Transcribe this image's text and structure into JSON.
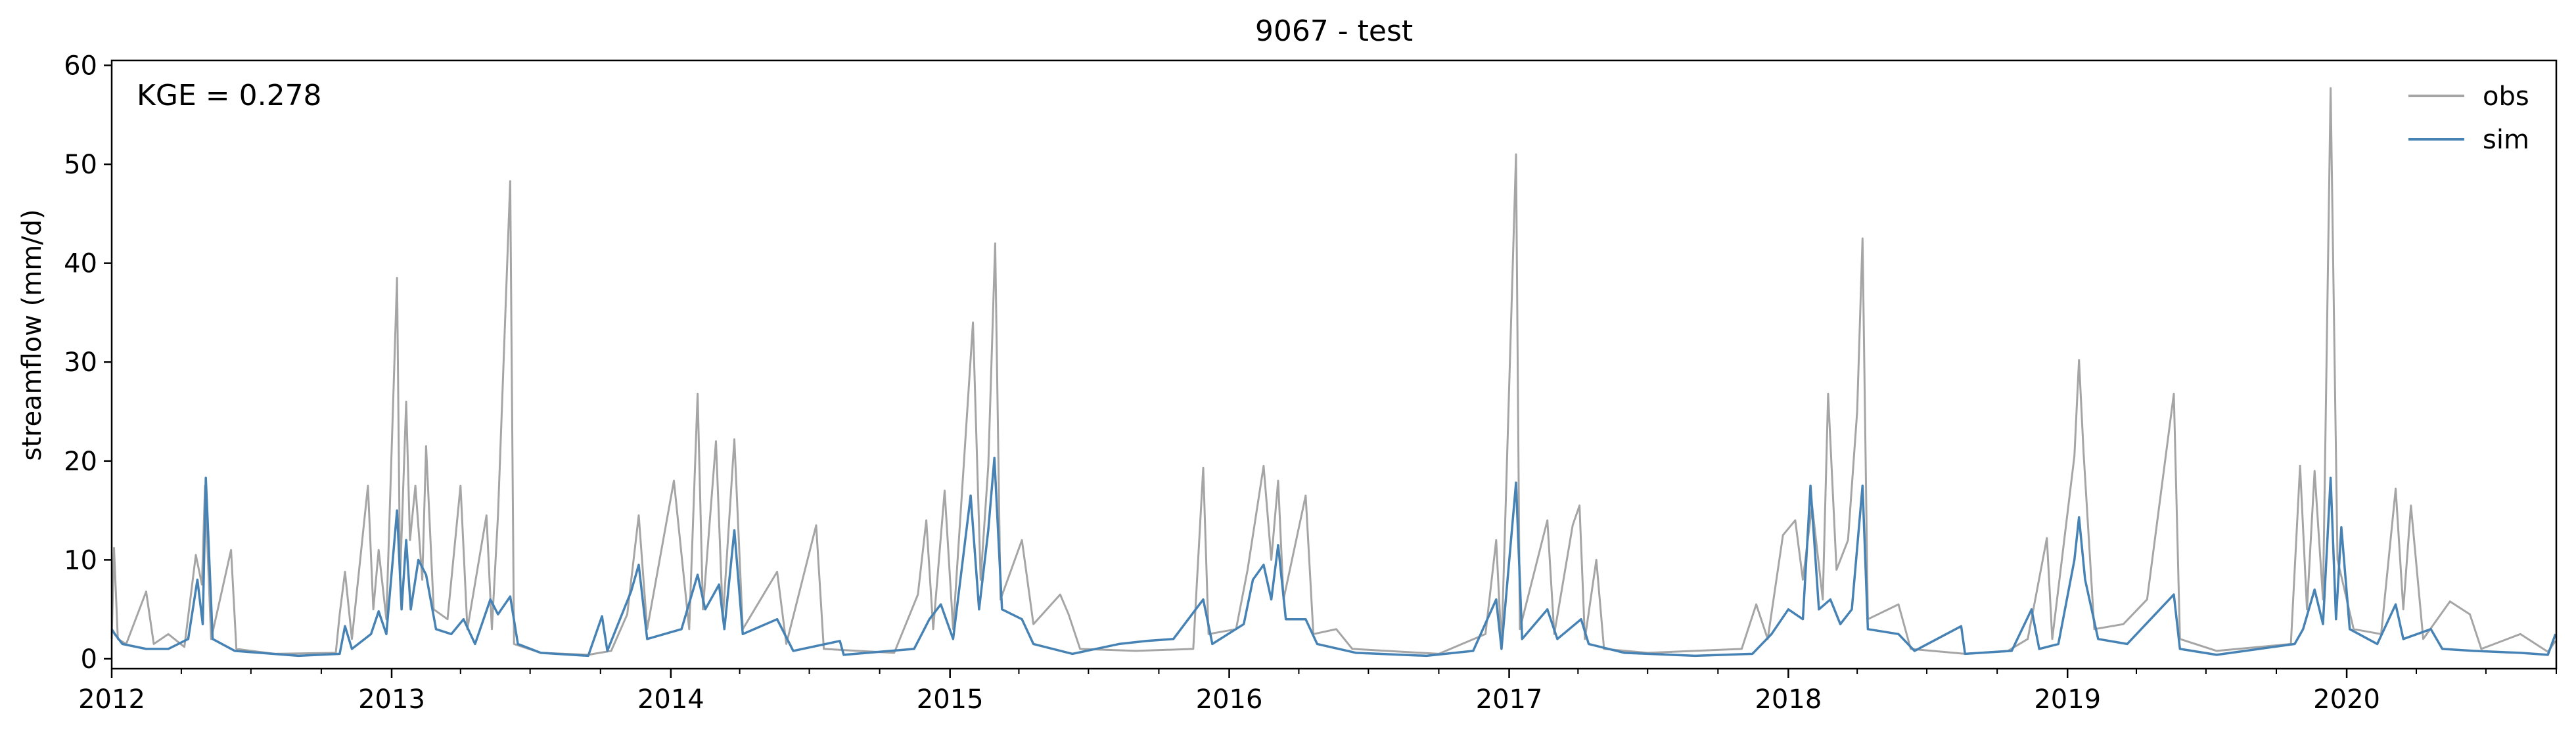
{
  "chart_data": {
    "type": "line",
    "title": "9067 - test",
    "xlabel": "",
    "ylabel": "streamflow (mm/d)",
    "annotation": "KGE = 0.278",
    "xlim": [
      "2012-01-01",
      "2020-10-01"
    ],
    "ylim": [
      -1,
      60.5
    ],
    "x_ticks": [
      "2012",
      "2013",
      "2014",
      "2015",
      "2016",
      "2017",
      "2018",
      "2019",
      "2020"
    ],
    "y_ticks": [
      0,
      10,
      20,
      30,
      40,
      50,
      60
    ],
    "grid": false,
    "legend_position": "top-right",
    "series": [
      {
        "name": "obs",
        "color": "#a5a5a5",
        "points": [
          [
            "2012-01-01",
            2.0
          ],
          [
            "2012-01-04",
            11.2
          ],
          [
            "2012-01-09",
            2.0
          ],
          [
            "2012-01-20",
            1.5
          ],
          [
            "2012-02-15",
            6.8
          ],
          [
            "2012-02-25",
            1.5
          ],
          [
            "2012-03-15",
            2.5
          ],
          [
            "2012-04-05",
            1.2
          ],
          [
            "2012-04-20",
            10.5
          ],
          [
            "2012-04-28",
            7.5
          ],
          [
            "2012-05-02",
            17.5
          ],
          [
            "2012-05-10",
            2.0
          ],
          [
            "2012-06-05",
            11.0
          ],
          [
            "2012-06-12",
            1.0
          ],
          [
            "2012-08-01",
            0.5
          ],
          [
            "2012-10-20",
            0.6
          ],
          [
            "2012-10-25",
            4.5
          ],
          [
            "2012-11-01",
            8.8
          ],
          [
            "2012-11-10",
            2.0
          ],
          [
            "2012-12-01",
            17.5
          ],
          [
            "2012-12-08",
            5.0
          ],
          [
            "2012-12-15",
            11.0
          ],
          [
            "2012-12-25",
            4.0
          ],
          [
            "2013-01-08",
            38.5
          ],
          [
            "2013-01-12",
            8.0
          ],
          [
            "2013-01-20",
            26.0
          ],
          [
            "2013-01-25",
            12.0
          ],
          [
            "2013-02-01",
            17.5
          ],
          [
            "2013-02-10",
            8.0
          ],
          [
            "2013-02-15",
            21.5
          ],
          [
            "2013-02-25",
            5.0
          ],
          [
            "2013-03-15",
            4.0
          ],
          [
            "2013-04-01",
            17.5
          ],
          [
            "2013-04-10",
            3.0
          ],
          [
            "2013-05-05",
            14.5
          ],
          [
            "2013-05-12",
            3.0
          ],
          [
            "2013-05-20",
            14.5
          ],
          [
            "2013-06-05",
            48.3
          ],
          [
            "2013-06-10",
            1.5
          ],
          [
            "2013-07-15",
            0.6
          ],
          [
            "2013-09-15",
            0.4
          ],
          [
            "2013-10-15",
            0.8
          ],
          [
            "2013-11-05",
            4.5
          ],
          [
            "2013-11-20",
            14.5
          ],
          [
            "2013-12-01",
            3.0
          ],
          [
            "2014-01-05",
            18.0
          ],
          [
            "2014-01-25",
            3.0
          ],
          [
            "2014-02-05",
            26.8
          ],
          [
            "2014-02-12",
            5.0
          ],
          [
            "2014-03-01",
            22.0
          ],
          [
            "2014-03-10",
            4.0
          ],
          [
            "2014-03-25",
            22.2
          ],
          [
            "2014-04-05",
            3.0
          ],
          [
            "2014-05-20",
            8.8
          ],
          [
            "2014-06-01",
            1.5
          ],
          [
            "2014-07-10",
            13.5
          ],
          [
            "2014-07-20",
            1.0
          ],
          [
            "2014-10-20",
            0.6
          ],
          [
            "2014-11-20",
            6.5
          ],
          [
            "2014-12-01",
            14.0
          ],
          [
            "2014-12-10",
            3.0
          ],
          [
            "2014-12-25",
            17.0
          ],
          [
            "2015-01-05",
            3.0
          ],
          [
            "2015-01-31",
            34.0
          ],
          [
            "2015-02-10",
            8.0
          ],
          [
            "2015-02-20",
            19.5
          ],
          [
            "2015-03-01",
            42.0
          ],
          [
            "2015-03-08",
            6.0
          ],
          [
            "2015-04-05",
            12.0
          ],
          [
            "2015-04-20",
            3.5
          ],
          [
            "2015-05-25",
            6.5
          ],
          [
            "2015-06-05",
            4.5
          ],
          [
            "2015-06-20",
            1.0
          ],
          [
            "2015-09-01",
            0.8
          ],
          [
            "2015-11-15",
            1.0
          ],
          [
            "2015-11-28",
            19.3
          ],
          [
            "2015-12-05",
            2.5
          ],
          [
            "2016-01-10",
            3.0
          ],
          [
            "2016-01-25",
            9.0
          ],
          [
            "2016-02-15",
            19.5
          ],
          [
            "2016-02-25",
            10.0
          ],
          [
            "2016-03-05",
            18.0
          ],
          [
            "2016-03-12",
            6.0
          ],
          [
            "2016-04-10",
            16.5
          ],
          [
            "2016-04-20",
            2.5
          ],
          [
            "2016-05-20",
            3.0
          ],
          [
            "2016-06-10",
            1.0
          ],
          [
            "2016-10-01",
            0.5
          ],
          [
            "2016-12-01",
            2.5
          ],
          [
            "2016-12-15",
            12.0
          ],
          [
            "2016-12-22",
            1.2
          ],
          [
            "2017-01-10",
            51.0
          ],
          [
            "2017-01-15",
            3.0
          ],
          [
            "2017-02-20",
            14.0
          ],
          [
            "2017-03-01",
            2.5
          ],
          [
            "2017-03-25",
            13.5
          ],
          [
            "2017-04-03",
            15.5
          ],
          [
            "2017-04-10",
            2.0
          ],
          [
            "2017-04-25",
            10.0
          ],
          [
            "2017-05-05",
            1.0
          ],
          [
            "2017-07-01",
            0.6
          ],
          [
            "2017-11-01",
            1.0
          ],
          [
            "2017-11-20",
            5.5
          ],
          [
            "2017-12-05",
            2.0
          ],
          [
            "2017-12-25",
            12.5
          ],
          [
            "2018-01-10",
            14.0
          ],
          [
            "2018-01-20",
            8.0
          ],
          [
            "2018-02-01",
            15.5
          ],
          [
            "2018-02-15",
            6.0
          ],
          [
            "2018-02-22",
            26.8
          ],
          [
            "2018-03-05",
            9.0
          ],
          [
            "2018-03-20",
            12.0
          ],
          [
            "2018-04-01",
            25.0
          ],
          [
            "2018-04-08",
            42.5
          ],
          [
            "2018-04-15",
            4.0
          ],
          [
            "2018-05-25",
            5.5
          ],
          [
            "2018-06-10",
            1.0
          ],
          [
            "2018-08-20",
            0.5
          ],
          [
            "2018-10-15",
            0.8
          ],
          [
            "2018-11-10",
            2.0
          ],
          [
            "2018-12-05",
            12.2
          ],
          [
            "2018-12-12",
            2.0
          ],
          [
            "2019-01-10",
            20.5
          ],
          [
            "2019-01-16",
            30.2
          ],
          [
            "2019-01-22",
            20.8
          ],
          [
            "2019-02-05",
            3.0
          ],
          [
            "2019-03-15",
            3.5
          ],
          [
            "2019-04-15",
            6.0
          ],
          [
            "2019-05-20",
            26.8
          ],
          [
            "2019-05-28",
            2.0
          ],
          [
            "2019-07-15",
            0.8
          ],
          [
            "2019-10-20",
            1.5
          ],
          [
            "2019-11-01",
            19.5
          ],
          [
            "2019-11-10",
            5.0
          ],
          [
            "2019-11-20",
            19.0
          ],
          [
            "2019-12-01",
            6.0
          ],
          [
            "2019-12-11",
            57.7
          ],
          [
            "2019-12-20",
            10.0
          ],
          [
            "2020-01-10",
            3.0
          ],
          [
            "2020-02-15",
            2.5
          ],
          [
            "2020-03-05",
            17.2
          ],
          [
            "2020-03-15",
            5.0
          ],
          [
            "2020-03-25",
            15.5
          ],
          [
            "2020-04-10",
            2.0
          ],
          [
            "2020-05-15",
            5.8
          ],
          [
            "2020-06-10",
            4.5
          ],
          [
            "2020-06-25",
            1.0
          ],
          [
            "2020-08-15",
            2.5
          ],
          [
            "2020-09-20",
            0.7
          ],
          [
            "2020-09-30",
            1.8
          ]
        ]
      },
      {
        "name": "sim",
        "color": "#4682b4",
        "points": [
          [
            "2012-01-01",
            3.0
          ],
          [
            "2012-01-05",
            2.5
          ],
          [
            "2012-01-15",
            1.5
          ],
          [
            "2012-02-15",
            1.0
          ],
          [
            "2012-03-15",
            1.0
          ],
          [
            "2012-04-10",
            2.0
          ],
          [
            "2012-04-22",
            8.0
          ],
          [
            "2012-04-29",
            3.5
          ],
          [
            "2012-05-03",
            18.3
          ],
          [
            "2012-05-12",
            2.0
          ],
          [
            "2012-06-10",
            0.8
          ],
          [
            "2012-09-01",
            0.3
          ],
          [
            "2012-10-25",
            0.5
          ],
          [
            "2012-11-01",
            3.3
          ],
          [
            "2012-11-10",
            1.0
          ],
          [
            "2012-12-05",
            2.5
          ],
          [
            "2012-12-15",
            4.8
          ],
          [
            "2012-12-25",
            2.5
          ],
          [
            "2013-01-08",
            15.0
          ],
          [
            "2013-01-14",
            5.0
          ],
          [
            "2013-01-20",
            12.0
          ],
          [
            "2013-01-26",
            5.0
          ],
          [
            "2013-02-05",
            10.0
          ],
          [
            "2013-02-15",
            8.5
          ],
          [
            "2013-02-28",
            3.0
          ],
          [
            "2013-03-20",
            2.5
          ],
          [
            "2013-04-05",
            4.0
          ],
          [
            "2013-04-20",
            1.5
          ],
          [
            "2013-05-10",
            6.0
          ],
          [
            "2013-05-20",
            4.5
          ],
          [
            "2013-06-05",
            6.3
          ],
          [
            "2013-06-15",
            1.5
          ],
          [
            "2013-07-15",
            0.6
          ],
          [
            "2013-09-15",
            0.3
          ],
          [
            "2013-10-03",
            4.3
          ],
          [
            "2013-10-10",
            0.8
          ],
          [
            "2013-11-10",
            6.8
          ],
          [
            "2013-11-20",
            9.5
          ],
          [
            "2013-12-01",
            2.0
          ],
          [
            "2014-01-15",
            3.0
          ],
          [
            "2014-02-05",
            8.5
          ],
          [
            "2014-02-15",
            5.0
          ],
          [
            "2014-03-05",
            7.5
          ],
          [
            "2014-03-12",
            3.0
          ],
          [
            "2014-03-25",
            13.0
          ],
          [
            "2014-04-05",
            2.5
          ],
          [
            "2014-05-20",
            4.0
          ],
          [
            "2014-06-10",
            0.8
          ],
          [
            "2014-08-10",
            1.8
          ],
          [
            "2014-08-15",
            0.4
          ],
          [
            "2014-11-15",
            1.0
          ],
          [
            "2014-12-05",
            4.0
          ],
          [
            "2014-12-20",
            5.5
          ],
          [
            "2015-01-05",
            2.0
          ],
          [
            "2015-01-28",
            16.5
          ],
          [
            "2015-02-08",
            5.0
          ],
          [
            "2015-02-20",
            13.0
          ],
          [
            "2015-02-28",
            20.3
          ],
          [
            "2015-03-10",
            5.0
          ],
          [
            "2015-04-05",
            4.0
          ],
          [
            "2015-04-20",
            1.5
          ],
          [
            "2015-06-10",
            0.5
          ],
          [
            "2015-08-10",
            1.5
          ],
          [
            "2015-09-15",
            1.8
          ],
          [
            "2015-10-20",
            2.0
          ],
          [
            "2015-11-28",
            6.0
          ],
          [
            "2015-12-10",
            1.5
          ],
          [
            "2016-01-20",
            3.5
          ],
          [
            "2016-02-01",
            8.0
          ],
          [
            "2016-02-15",
            9.5
          ],
          [
            "2016-02-25",
            6.0
          ],
          [
            "2016-03-05",
            11.5
          ],
          [
            "2016-03-15",
            4.0
          ],
          [
            "2016-04-10",
            4.0
          ],
          [
            "2016-04-25",
            1.5
          ],
          [
            "2016-06-15",
            0.6
          ],
          [
            "2016-09-15",
            0.3
          ],
          [
            "2016-11-15",
            0.8
          ],
          [
            "2016-12-15",
            6.0
          ],
          [
            "2016-12-22",
            1.0
          ],
          [
            "2017-01-10",
            17.8
          ],
          [
            "2017-01-18",
            2.0
          ],
          [
            "2017-02-20",
            5.0
          ],
          [
            "2017-03-05",
            2.0
          ],
          [
            "2017-04-05",
            4.0
          ],
          [
            "2017-04-15",
            1.5
          ],
          [
            "2017-06-01",
            0.6
          ],
          [
            "2017-09-01",
            0.3
          ],
          [
            "2017-11-15",
            0.5
          ],
          [
            "2017-12-10",
            2.5
          ],
          [
            "2018-01-01",
            5.0
          ],
          [
            "2018-01-20",
            4.0
          ],
          [
            "2018-01-30",
            17.5
          ],
          [
            "2018-02-10",
            5.0
          ],
          [
            "2018-02-25",
            6.0
          ],
          [
            "2018-03-10",
            3.5
          ],
          [
            "2018-03-25",
            5.0
          ],
          [
            "2018-04-08",
            17.5
          ],
          [
            "2018-04-15",
            3.0
          ],
          [
            "2018-05-25",
            2.5
          ],
          [
            "2018-06-15",
            0.8
          ],
          [
            "2018-08-15",
            3.3
          ],
          [
            "2018-08-20",
            0.5
          ],
          [
            "2018-10-20",
            0.8
          ],
          [
            "2018-11-15",
            5.0
          ],
          [
            "2018-11-25",
            1.0
          ],
          [
            "2018-12-20",
            1.5
          ],
          [
            "2019-01-10",
            10.0
          ],
          [
            "2019-01-16",
            14.3
          ],
          [
            "2019-01-24",
            8.0
          ],
          [
            "2019-02-10",
            2.0
          ],
          [
            "2019-03-20",
            1.5
          ],
          [
            "2019-05-20",
            6.5
          ],
          [
            "2019-05-28",
            1.0
          ],
          [
            "2019-07-15",
            0.4
          ],
          [
            "2019-10-25",
            1.5
          ],
          [
            "2019-11-05",
            3.0
          ],
          [
            "2019-11-20",
            7.0
          ],
          [
            "2019-12-01",
            3.5
          ],
          [
            "2019-12-11",
            18.3
          ],
          [
            "2019-12-18",
            4.0
          ],
          [
            "2019-12-25",
            13.3
          ],
          [
            "2020-01-05",
            3.0
          ],
          [
            "2020-02-10",
            1.5
          ],
          [
            "2020-03-05",
            5.5
          ],
          [
            "2020-03-15",
            2.0
          ],
          [
            "2020-04-20",
            3.0
          ],
          [
            "2020-05-05",
            1.0
          ],
          [
            "2020-06-15",
            0.8
          ],
          [
            "2020-08-15",
            0.6
          ],
          [
            "2020-09-20",
            0.4
          ],
          [
            "2020-09-30",
            2.5
          ]
        ]
      }
    ]
  }
}
